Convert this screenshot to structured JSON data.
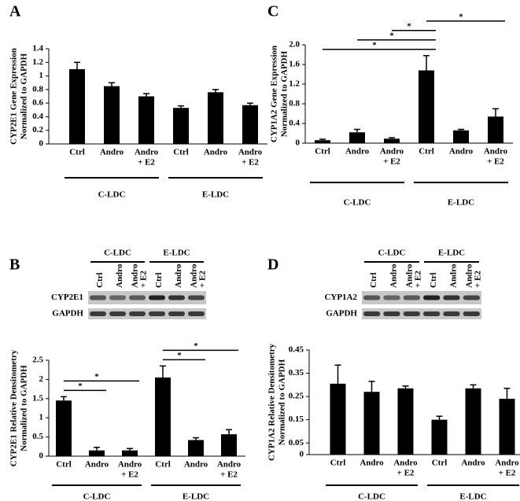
{
  "chart_data": [
    {
      "panel": "A",
      "type": "bar",
      "ylabel": [
        "CYP2E1 Gene Expression",
        "Normalized to GAPDH"
      ],
      "categories": [
        "Ctrl",
        "Andro",
        [
          "Andro",
          "+ E2"
        ],
        "Ctrl",
        "Andro",
        [
          "Andro",
          "+ E2"
        ]
      ],
      "values": [
        1.1,
        0.85,
        0.7,
        0.53,
        0.76,
        0.57
      ],
      "errors": [
        0.1,
        0.05,
        0.04,
        0.03,
        0.04,
        0.03
      ],
      "color": "#000000",
      "ylim": [
        0,
        1.4
      ],
      "yticks": [
        0,
        0.2,
        0.4,
        0.6,
        0.8,
        1,
        1.2,
        1.4
      ],
      "groups": [
        "C-LDC",
        "E-LDC"
      ]
    },
    {
      "panel": "C",
      "type": "bar",
      "ylabel": [
        "CYP1A2 Gene Expression",
        "Normalized to GAPDH"
      ],
      "categories": [
        "Ctrl",
        "Andro",
        [
          "Andro",
          "+ E2"
        ],
        "Ctrl",
        "Andro",
        [
          "Andro",
          "+ E2"
        ]
      ],
      "values": [
        0.06,
        0.22,
        0.09,
        1.48,
        0.26,
        0.54
      ],
      "errors": [
        0.02,
        0.06,
        0.02,
        0.3,
        0.02,
        0.16
      ],
      "color": "#000000",
      "ylim": [
        0,
        2
      ],
      "yticks": [
        0,
        0.4,
        0.8,
        1.2,
        1.6,
        {
          "value": 2,
          "label": "2.0"
        }
      ],
      "groups": [
        "C-LDC",
        "E-LDC"
      ],
      "annotations": [
        {
          "text": "*",
          "between": [
            0,
            3
          ]
        },
        {
          "text": "*",
          "between": [
            1,
            3
          ]
        },
        {
          "text": "*",
          "between": [
            2,
            3
          ]
        },
        {
          "text": "*",
          "between": [
            3,
            5
          ]
        }
      ]
    },
    {
      "panel": "B",
      "type": "bar",
      "ylabel": [
        "CYP2E1 Relative Densitometry",
        "Normalized to GAPDH"
      ],
      "categories": [
        "Ctrl",
        "Andro",
        [
          "Andro",
          "+ E2"
        ],
        "Ctrl",
        "Andro",
        [
          "Andro",
          "+ E2"
        ]
      ],
      "values": [
        1.45,
        0.15,
        0.15,
        2.05,
        0.42,
        0.57
      ],
      "errors": [
        0.1,
        0.08,
        0.05,
        0.3,
        0.06,
        0.12
      ],
      "color": "#000000",
      "ylim": [
        0,
        2.5
      ],
      "yticks": [
        0,
        0.5,
        1,
        1.5,
        2,
        2.5
      ],
      "groups": [
        "C-LDC",
        "E-LDC"
      ],
      "annotations": [
        {
          "text": "*",
          "between": [
            0,
            1
          ]
        },
        {
          "text": "*",
          "between": [
            0,
            2
          ]
        },
        {
          "text": "*",
          "between": [
            3,
            4
          ]
        },
        {
          "text": "*",
          "between": [
            3,
            5
          ]
        }
      ],
      "blot": {
        "groups": [
          "C-LDC",
          "E-LDC"
        ],
        "lanes": [
          "Ctrl",
          "Andro",
          [
            "Andro",
            "+ E2"
          ],
          "Ctrl",
          "Andro",
          [
            "Andro",
            "+ E2"
          ]
        ],
        "rows": [
          "CYP2E1",
          "GAPDH"
        ]
      }
    },
    {
      "panel": "D",
      "type": "bar",
      "ylabel": [
        "CYP1A2 Relative Densitometry",
        "Normalized to GAPDH"
      ],
      "categories": [
        "Ctrl",
        "Andro",
        [
          "Andro",
          "+ E2"
        ],
        "Ctrl",
        "Andro",
        [
          "Andro",
          "+ E2"
        ]
      ],
      "values": [
        0.305,
        0.27,
        0.285,
        0.15,
        0.285,
        0.24
      ],
      "errors": [
        0.08,
        0.045,
        0.01,
        0.015,
        0.015,
        0.045
      ],
      "color": "#000000",
      "ylim": [
        0,
        0.45
      ],
      "yticks": [
        0,
        0.05,
        0.15,
        0.25,
        0.35,
        0.45
      ],
      "groups": [
        "C-LDC",
        "E-LDC"
      ],
      "blot": {
        "groups": [
          "C-LDC",
          "E-LDC"
        ],
        "lanes": [
          "Ctrl",
          "Andro",
          [
            "Andro",
            "+ E2"
          ],
          "Ctrl",
          "Andro",
          [
            "Andro",
            "+ E2"
          ]
        ],
        "rows": [
          "CYP1A2",
          "GAPDH"
        ]
      }
    }
  ]
}
